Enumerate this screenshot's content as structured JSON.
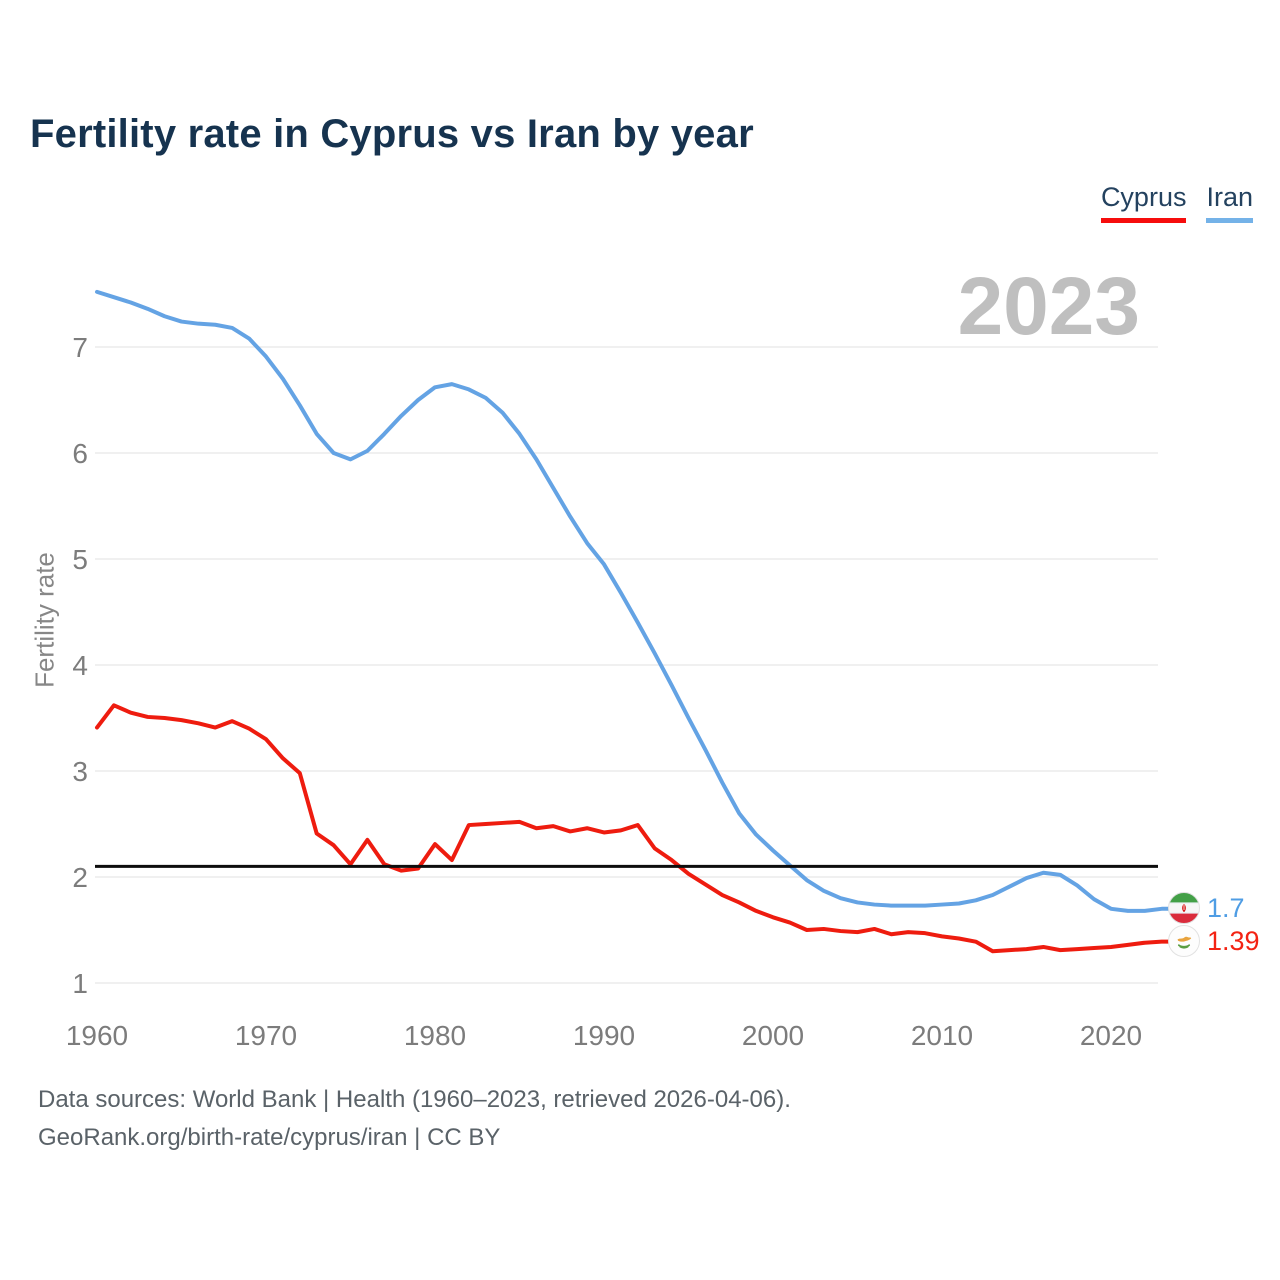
{
  "header": {
    "title": "Fertility rate in Cyprus vs Iran by year"
  },
  "legend": [
    {
      "label": "Cyprus",
      "color": "#f60d0d"
    },
    {
      "label": "Iran",
      "color": "#74b2e8"
    }
  ],
  "watermark": {
    "text": "2023"
  },
  "chart_data": {
    "type": "line",
    "title": "Fertility rate in Cyprus vs Iran by year",
    "xlabel": "",
    "ylabel": "Fertility rate",
    "grid": true,
    "legend_position": "top-right",
    "ylim": [
      1,
      7.6
    ],
    "xlim": [
      1960,
      2023
    ],
    "y_ticks": [
      1,
      2,
      3,
      4,
      5,
      6,
      7
    ],
    "x_ticks": [
      1960,
      1970,
      1980,
      1990,
      2000,
      2010,
      2020
    ],
    "x": [
      1960,
      1961,
      1962,
      1963,
      1964,
      1965,
      1966,
      1967,
      1968,
      1969,
      1970,
      1971,
      1972,
      1973,
      1974,
      1975,
      1976,
      1977,
      1978,
      1979,
      1980,
      1981,
      1982,
      1983,
      1984,
      1985,
      1986,
      1987,
      1988,
      1989,
      1990,
      1991,
      1992,
      1993,
      1994,
      1995,
      1996,
      1997,
      1998,
      1999,
      2000,
      2001,
      2002,
      2003,
      2004,
      2005,
      2006,
      2007,
      2008,
      2009,
      2010,
      2011,
      2012,
      2013,
      2014,
      2015,
      2016,
      2017,
      2018,
      2019,
      2020,
      2021,
      2022,
      2023
    ],
    "series": [
      {
        "name": "Cyprus",
        "color": "#ee1c0f",
        "values": [
          3.41,
          3.62,
          3.55,
          3.51,
          3.5,
          3.48,
          3.45,
          3.41,
          3.47,
          3.4,
          3.3,
          3.12,
          2.98,
          2.41,
          2.3,
          2.12,
          2.35,
          2.12,
          2.06,
          2.08,
          2.31,
          2.16,
          2.49,
          2.5,
          2.51,
          2.52,
          2.46,
          2.48,
          2.43,
          2.46,
          2.42,
          2.44,
          2.49,
          2.27,
          2.16,
          2.03,
          1.93,
          1.83,
          1.76,
          1.68,
          1.62,
          1.57,
          1.5,
          1.51,
          1.49,
          1.48,
          1.51,
          1.46,
          1.48,
          1.47,
          1.44,
          1.42,
          1.39,
          1.3,
          1.31,
          1.32,
          1.34,
          1.31,
          1.32,
          1.33,
          1.34,
          1.36,
          1.38,
          1.39
        ]
      },
      {
        "name": "Iran",
        "color": "#64a3e4",
        "values": [
          7.52,
          7.47,
          7.42,
          7.36,
          7.29,
          7.24,
          7.22,
          7.21,
          7.18,
          7.08,
          6.91,
          6.7,
          6.45,
          6.18,
          6.0,
          5.94,
          6.02,
          6.18,
          6.35,
          6.5,
          6.62,
          6.65,
          6.6,
          6.52,
          6.38,
          6.18,
          5.94,
          5.67,
          5.4,
          5.15,
          4.95,
          4.68,
          4.4,
          4.11,
          3.81,
          3.5,
          3.2,
          2.89,
          2.6,
          2.4,
          2.25,
          2.11,
          1.97,
          1.87,
          1.8,
          1.76,
          1.74,
          1.73,
          1.73,
          1.73,
          1.74,
          1.75,
          1.78,
          1.83,
          1.91,
          1.99,
          2.04,
          2.02,
          1.92,
          1.79,
          1.7,
          1.68,
          1.68,
          1.7
        ]
      }
    ],
    "reference_line": {
      "value": 2.1,
      "color": "#0d0d0d"
    }
  },
  "end_labels": [
    {
      "series": "Iran",
      "value": "1.7",
      "color": "#4f9de4",
      "flag": "iran-flag-icon"
    },
    {
      "series": "Cyprus",
      "value": "1.39",
      "color": "#f32313",
      "flag": "cyprus-flag-icon"
    }
  ],
  "footer": {
    "line1": "Data sources: World Bank | Health (1960–2023, retrieved 2026-04-06).",
    "line2": "GeoRank.org/birth-rate/cyprus/iran | CC BY"
  }
}
